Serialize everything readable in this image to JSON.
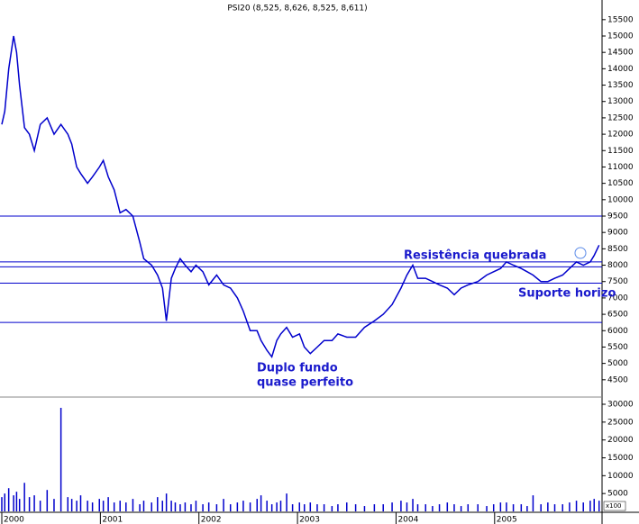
{
  "chart_data": [
    {
      "type": "line",
      "title": "PSI20 (8,525, 8,626, 8,525, 8,611)",
      "series": [
        {
          "name": "PSI20",
          "color": "#0000cc",
          "x": [
            2000,
            2000.03,
            2000.07,
            2000.12,
            2000.15,
            2000.18,
            2000.23,
            2000.28,
            2000.33,
            2000.39,
            2000.46,
            2000.53,
            2000.6,
            2000.67,
            2000.71,
            2000.76,
            2000.8,
            2000.87,
            2000.92,
            2000.99,
            2001.03,
            2001.08,
            2001.14,
            2001.2,
            2001.26,
            2001.33,
            2001.4,
            2001.44,
            2001.52,
            2001.58,
            2001.63,
            2001.67,
            2001.72,
            2001.76,
            2001.81,
            2001.86,
            2001.92,
            2001.97,
            2002.04,
            2002.1,
            2002.18,
            2002.25,
            2002.32,
            2002.39,
            2002.45,
            2002.52,
            2002.59,
            2002.63,
            2002.69,
            2002.74,
            2002.79,
            2002.83,
            2002.89,
            2002.95,
            2003.02,
            2003.07,
            2003.13,
            2003.2,
            2003.27,
            2003.35,
            2003.41,
            2003.5,
            2003.59,
            2003.68,
            2003.78,
            2003.87,
            2003.96,
            2004.05,
            2004.11,
            2004.17,
            2004.22,
            2004.3,
            2004.37,
            2004.44,
            2004.52,
            2004.59,
            2004.66,
            2004.73,
            2004.83,
            2004.92,
            2004.99,
            2005.06,
            2005.12,
            2005.19,
            2005.27,
            2005.33,
            2005.39,
            2005.47,
            2005.54,
            2005.61,
            2005.69,
            2005.76,
            2005.83,
            2005.9,
            2005.97,
            2006.01,
            2006.06
          ],
          "values": [
            12300,
            12700,
            14000,
            15000,
            14500,
            13500,
            12200,
            12000,
            11500,
            12300,
            12500,
            12000,
            12300,
            12000,
            11700,
            11000,
            10800,
            10500,
            10700,
            11000,
            11200,
            10700,
            10300,
            9600,
            9700,
            9500,
            8700,
            8200,
            8000,
            7700,
            7300,
            6300,
            7600,
            7900,
            8200,
            8000,
            7800,
            8000,
            7800,
            7400,
            7700,
            7400,
            7300,
            7000,
            6600,
            6000,
            6000,
            5700,
            5400,
            5200,
            5700,
            5900,
            6100,
            5800,
            5900,
            5500,
            5300,
            5500,
            5700,
            5700,
            5900,
            5800,
            5800,
            6100,
            6300,
            6500,
            6800,
            7300,
            7700,
            8000,
            7600,
            7600,
            7500,
            7400,
            7300,
            7100,
            7300,
            7400,
            7500,
            7700,
            7800,
            7900,
            8100,
            8000,
            7900,
            7800,
            7700,
            7500,
            7500,
            7600,
            7700,
            7900,
            8100,
            8000,
            8100,
            8300,
            8611
          ]
        }
      ],
      "xlim": [
        2000,
        2006.09
      ],
      "xticks": [
        2000,
        2001,
        2002,
        2003,
        2004,
        2005
      ],
      "ylim": [
        4000,
        16100
      ],
      "yticks": [
        4500,
        5000,
        5500,
        6000,
        6500,
        7000,
        7500,
        8000,
        8500,
        9000,
        9500,
        10000,
        10500,
        11000,
        11500,
        12000,
        12500,
        13000,
        13500,
        14000,
        14500,
        15000,
        15500
      ],
      "hlines": [
        9500,
        8100,
        7950,
        7450,
        6250
      ],
      "annotations": [
        "Resistência quebrada",
        "Suporte horizo",
        "Duplo fundo",
        "quase perfeito"
      ]
    },
    {
      "type": "bar",
      "unit_label": "x100",
      "series": [
        {
          "name": "Volume",
          "color": "#0000cc",
          "x": [
            2000,
            2000.03,
            2000.07,
            2000.12,
            2000.15,
            2000.18,
            2000.23,
            2000.28,
            2000.33,
            2000.39,
            2000.46,
            2000.53,
            2000.6,
            2000.67,
            2000.71,
            2000.76,
            2000.8,
            2000.87,
            2000.92,
            2000.99,
            2001.03,
            2001.08,
            2001.14,
            2001.2,
            2001.26,
            2001.33,
            2001.4,
            2001.44,
            2001.52,
            2001.58,
            2001.63,
            2001.67,
            2001.72,
            2001.76,
            2001.81,
            2001.86,
            2001.92,
            2001.97,
            2002.04,
            2002.1,
            2002.18,
            2002.25,
            2002.32,
            2002.39,
            2002.45,
            2002.52,
            2002.59,
            2002.63,
            2002.69,
            2002.74,
            2002.79,
            2002.83,
            2002.89,
            2002.95,
            2003.02,
            2003.07,
            2003.13,
            2003.2,
            2003.27,
            2003.35,
            2003.41,
            2003.5,
            2003.59,
            2003.68,
            2003.78,
            2003.87,
            2003.96,
            2004.05,
            2004.11,
            2004.17,
            2004.22,
            2004.3,
            2004.37,
            2004.44,
            2004.52,
            2004.59,
            2004.66,
            2004.73,
            2004.83,
            2004.92,
            2004.99,
            2005.06,
            2005.12,
            2005.19,
            2005.27,
            2005.33,
            2005.39,
            2005.47,
            2005.54,
            2005.61,
            2005.69,
            2005.76,
            2005.83,
            2005.9,
            2005.97,
            2006.01,
            2006.06
          ],
          "values": [
            4000,
            5000,
            6500,
            4500,
            5500,
            3500,
            8000,
            4000,
            4500,
            3000,
            6000,
            3500,
            29000,
            4000,
            3500,
            3000,
            4500,
            3000,
            2500,
            3500,
            3000,
            4000,
            2500,
            3000,
            2500,
            3500,
            2000,
            3000,
            2500,
            4000,
            3000,
            5000,
            3000,
            2500,
            2000,
            2500,
            2000,
            3000,
            2000,
            2500,
            2000,
            3500,
            2000,
            2500,
            3000,
            2500,
            3500,
            4500,
            3000,
            2000,
            2500,
            3000,
            5000,
            2000,
            2500,
            2000,
            2500,
            2000,
            2000,
            1500,
            2000,
            2500,
            2000,
            1500,
            2000,
            2000,
            2500,
            3000,
            2500,
            3500,
            2000,
            2000,
            1500,
            2000,
            2500,
            2000,
            1500,
            2000,
            2000,
            1500,
            2000,
            2500,
            2500,
            2000,
            2000,
            1500,
            4500,
            2000,
            2500,
            2000,
            2000,
            2500,
            3000,
            2500,
            3000,
            3500,
            3000
          ]
        }
      ],
      "ylim": [
        0,
        30000
      ],
      "yticks": [
        5000,
        10000,
        15000,
        20000,
        25000,
        30000
      ]
    }
  ]
}
